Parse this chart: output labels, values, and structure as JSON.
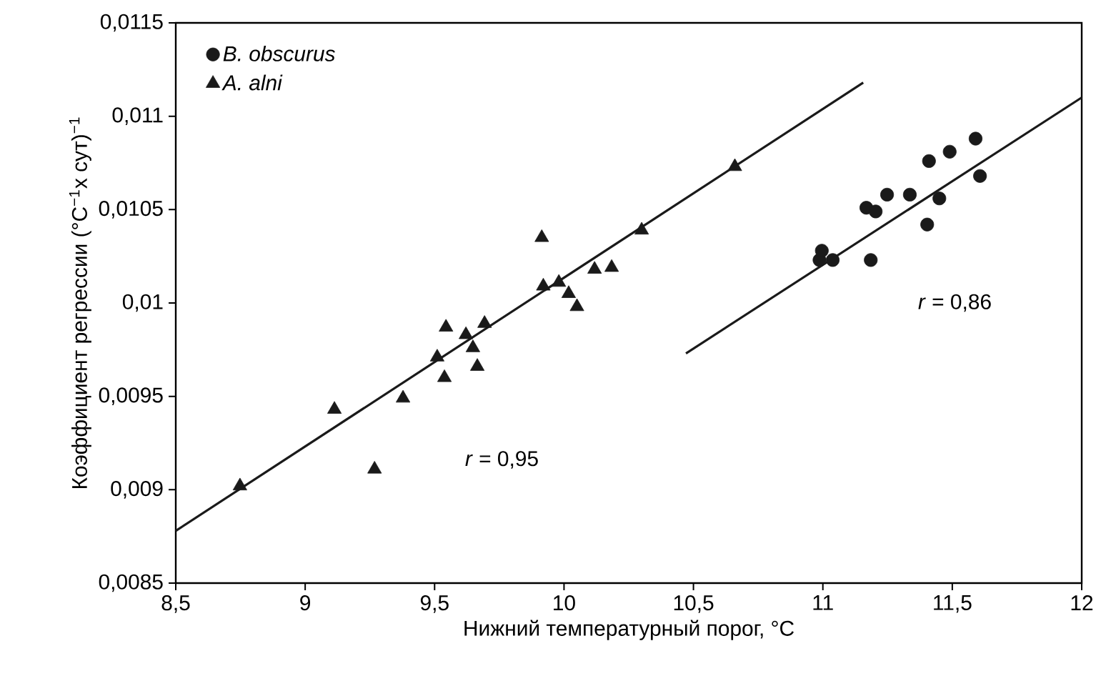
{
  "chart_data": {
    "type": "scatter",
    "xlabel": "Нижний температурный порог, °C",
    "ylabel": "Коэффициент регрессии (°C$^{−1}$x сут)$^{−1}$",
    "xlim": [
      8.5,
      12
    ],
    "ylim": [
      0.0085,
      0.0115
    ],
    "xticks": [
      {
        "value": 8.5,
        "label": "8,5"
      },
      9,
      {
        "value": 9.5,
        "label": "9,5"
      },
      10,
      {
        "value": 10.5,
        "label": "10,5"
      },
      11,
      {
        "value": 11.5,
        "label": "11,5"
      },
      12
    ],
    "yticks": [
      {
        "value": 0.0085,
        "label": "0,0085"
      },
      {
        "value": 0.009,
        "label": "0,009"
      },
      {
        "value": 0.0095,
        "label": "0,0095"
      },
      {
        "value": 0.01,
        "label": "0,01"
      },
      {
        "value": 0.0105,
        "label": "0,0105"
      },
      {
        "value": 0.011,
        "label": "0,011"
      },
      {
        "value": 0.0115,
        "label": "0,0115"
      }
    ],
    "legend": "top left",
    "grid": false,
    "annotations": [
      "*r* = 0,95",
      "*r* = 0,86"
    ],
    "series": [
      {
        "name": "*B. obscurus*",
        "color": "#1a1a1a",
        "marker": "circle",
        "x": [
          10.987,
          10.996,
          11.038,
          11.185,
          11.168,
          11.204,
          11.248,
          11.336,
          11.403,
          11.41,
          11.45,
          11.49,
          11.59,
          11.607
        ],
        "values": [
          0.01023,
          0.01028,
          0.01023,
          0.01023,
          0.01051,
          0.01049,
          0.01058,
          0.01058,
          0.01042,
          0.01076,
          0.01056,
          0.01081,
          0.01088,
          0.01068
        ]
      },
      {
        "name": "*A. alni*",
        "color": "#1a1a1a",
        "marker": "triangle",
        "x": [
          8.748,
          9.113,
          9.268,
          9.378,
          9.51,
          9.544,
          9.538,
          9.621,
          9.648,
          9.665,
          9.693,
          9.914,
          9.92,
          9.98,
          10.018,
          10.05,
          10.118,
          10.184,
          10.3,
          10.66
        ],
        "values": [
          0.00902,
          0.00943,
          0.00911,
          0.00949,
          0.00971,
          0.00987,
          0.0096,
          0.00983,
          0.00976,
          0.00966,
          0.00989,
          0.01035,
          0.01009,
          0.01011,
          0.01005,
          0.00998,
          0.01018,
          0.01019,
          0.01039,
          0.01073
        ]
      },
      {
        "type": "line",
        "color": "#1a1a1a",
        "marker": "none",
        "x": [
          8.5,
          11.156
        ],
        "values": [
          0.00878,
          0.01118
        ]
      },
      {
        "type": "line",
        "color": "#1a1a1a",
        "marker": "none",
        "x": [
          10.471,
          12.0
        ],
        "values": [
          0.00973,
          0.0111
        ]
      }
    ]
  }
}
